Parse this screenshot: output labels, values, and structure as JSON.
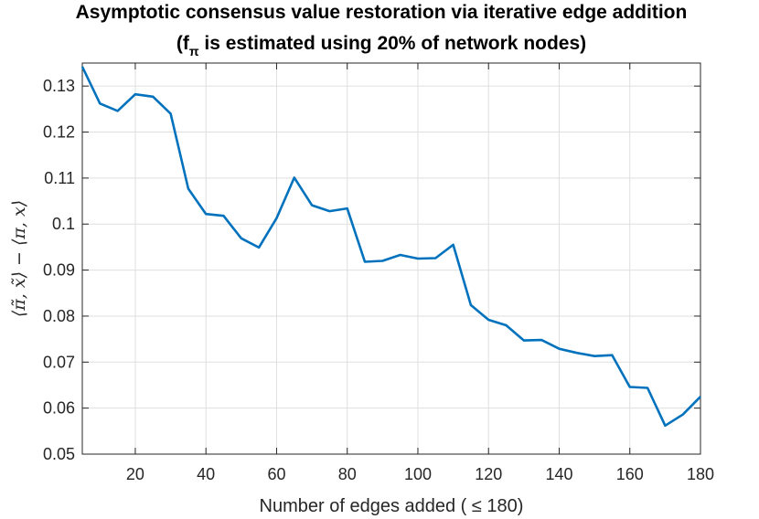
{
  "chart_data": {
    "type": "line",
    "title_line1": "Asymptotic consensus value restoration via iterative edge addition",
    "title_line2_pre": "(f",
    "title_line2_sub": "π",
    "title_line2_post": " is estimated using 20% of network nodes)",
    "xlabel": "Number of edges added ( ≤ 180)",
    "ylabel": "⟨π̃, x̃⟩ − ⟨π, x⟩",
    "xlim": [
      5,
      180
    ],
    "ylim": [
      0.05,
      0.135
    ],
    "xticks": [
      20,
      40,
      60,
      80,
      100,
      120,
      140,
      160,
      180
    ],
    "xtick_labels": [
      "20",
      "40",
      "60",
      "80",
      "100",
      "120",
      "140",
      "160",
      "180"
    ],
    "yticks": [
      0.05,
      0.06,
      0.07,
      0.08,
      0.09,
      0.1,
      0.11,
      0.12,
      0.13
    ],
    "ytick_labels": [
      "0.05",
      "0.06",
      "0.07",
      "0.08",
      "0.09",
      "0.1",
      "0.11",
      "0.12",
      "0.13"
    ],
    "grid": true,
    "color": "#0072BD",
    "x": [
      5,
      10,
      15,
      20,
      25,
      30,
      35,
      40,
      45,
      50,
      55,
      60,
      65,
      70,
      75,
      80,
      85,
      90,
      95,
      100,
      105,
      110,
      115,
      120,
      125,
      130,
      135,
      140,
      145,
      150,
      155,
      160,
      165,
      170,
      175,
      180
    ],
    "y": [
      0.1342,
      0.1262,
      0.1246,
      0.1282,
      0.1277,
      0.124,
      0.1077,
      0.1022,
      0.1018,
      0.0969,
      0.0949,
      0.1013,
      0.1101,
      0.1041,
      0.1028,
      0.1034,
      0.0918,
      0.092,
      0.0933,
      0.0925,
      0.0926,
      0.0955,
      0.0824,
      0.0792,
      0.078,
      0.0747,
      0.0748,
      0.0729,
      0.072,
      0.0713,
      0.0715,
      0.0646,
      0.0644,
      0.0562,
      0.0586,
      0.0625
    ]
  }
}
